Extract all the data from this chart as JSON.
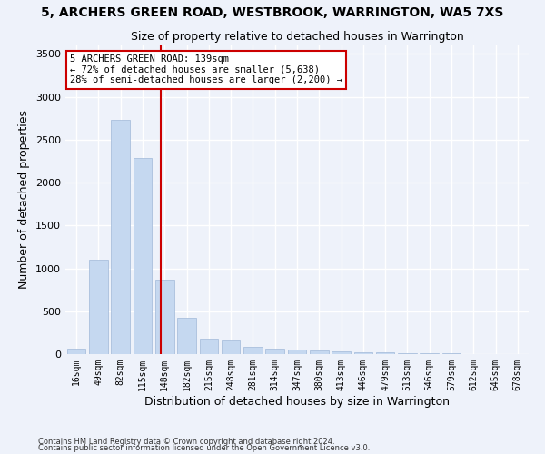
{
  "title": "5, ARCHERS GREEN ROAD, WESTBROOK, WARRINGTON, WA5 7XS",
  "subtitle": "Size of property relative to detached houses in Warrington",
  "xlabel": "Distribution of detached houses by size in Warrington",
  "ylabel": "Number of detached properties",
  "categories": [
    "16sqm",
    "49sqm",
    "82sqm",
    "115sqm",
    "148sqm",
    "182sqm",
    "215sqm",
    "248sqm",
    "281sqm",
    "314sqm",
    "347sqm",
    "380sqm",
    "413sqm",
    "446sqm",
    "479sqm",
    "513sqm",
    "546sqm",
    "579sqm",
    "612sqm",
    "645sqm",
    "678sqm"
  ],
  "values": [
    60,
    1100,
    2730,
    2290,
    870,
    420,
    175,
    170,
    90,
    60,
    50,
    40,
    35,
    25,
    20,
    10,
    10,
    8,
    5,
    3,
    2
  ],
  "bar_color": "#c5d8f0",
  "bar_edgecolor": "#a0b8d8",
  "redline_index": 3.83,
  "annotation_text": "5 ARCHERS GREEN ROAD: 139sqm\n← 72% of detached houses are smaller (5,638)\n28% of semi-detached houses are larger (2,200) →",
  "annotation_box_color": "#ffffff",
  "annotation_box_edgecolor": "#cc0000",
  "ylim": [
    0,
    3600
  ],
  "yticks": [
    0,
    500,
    1000,
    1500,
    2000,
    2500,
    3000,
    3500
  ],
  "redline_color": "#cc0000",
  "background_color": "#eef2fa",
  "grid_color": "#ffffff",
  "footer_line1": "Contains HM Land Registry data © Crown copyright and database right 2024.",
  "footer_line2": "Contains public sector information licensed under the Open Government Licence v3.0.",
  "title_fontsize": 10,
  "subtitle_fontsize": 9,
  "xlabel_fontsize": 9,
  "ylabel_fontsize": 9
}
